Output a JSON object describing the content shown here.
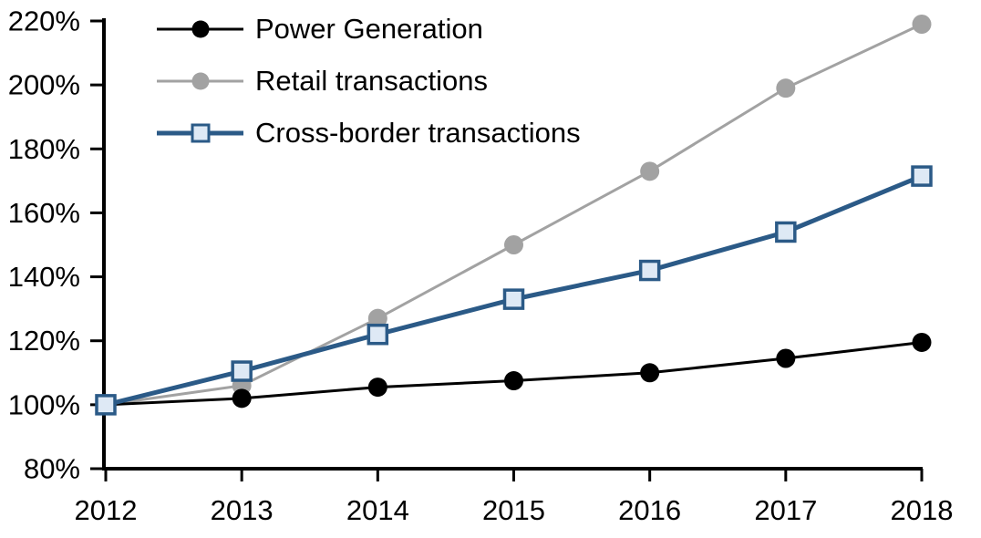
{
  "chart_data": {
    "type": "line",
    "title": "",
    "xlabel": "",
    "ylabel": "",
    "x": [
      2012,
      2013,
      2014,
      2015,
      2016,
      2017,
      2018
    ],
    "xtick_labels": [
      "2012",
      "2013",
      "2014",
      "2015",
      "2016",
      "2017",
      "2018"
    ],
    "ylim": [
      80,
      220
    ],
    "ytick_step": 20,
    "ytick_labels": [
      "80%",
      "100%",
      "120%",
      "140%",
      "160%",
      "180%",
      "200%",
      "220%"
    ],
    "grid": false,
    "legend_position": "top-left-inside",
    "unit": "percent, indexed 2012 = 100%",
    "series": [
      {
        "name": "Power Generation",
        "values": [
          100,
          102,
          105.5,
          107.5,
          110,
          114.5,
          119.5
        ],
        "color": "#000000",
        "marker": "circle",
        "marker_fill": "#000000",
        "line_width": 3,
        "z": 2
      },
      {
        "name": "Retail transactions",
        "values": [
          100,
          106,
          127,
          150,
          173,
          199,
          219
        ],
        "color": "#A2A2A2",
        "marker": "circle",
        "marker_fill": "#A2A2A2",
        "line_width": 3,
        "z": 1
      },
      {
        "name": "Cross-border transactions",
        "values": [
          100,
          110.5,
          122,
          133,
          142,
          154,
          171.5
        ],
        "color": "#2B5A87",
        "marker": "square",
        "marker_fill": "#DEE9F5",
        "line_width": 5,
        "z": 3
      }
    ],
    "axis_color": "#000000"
  }
}
